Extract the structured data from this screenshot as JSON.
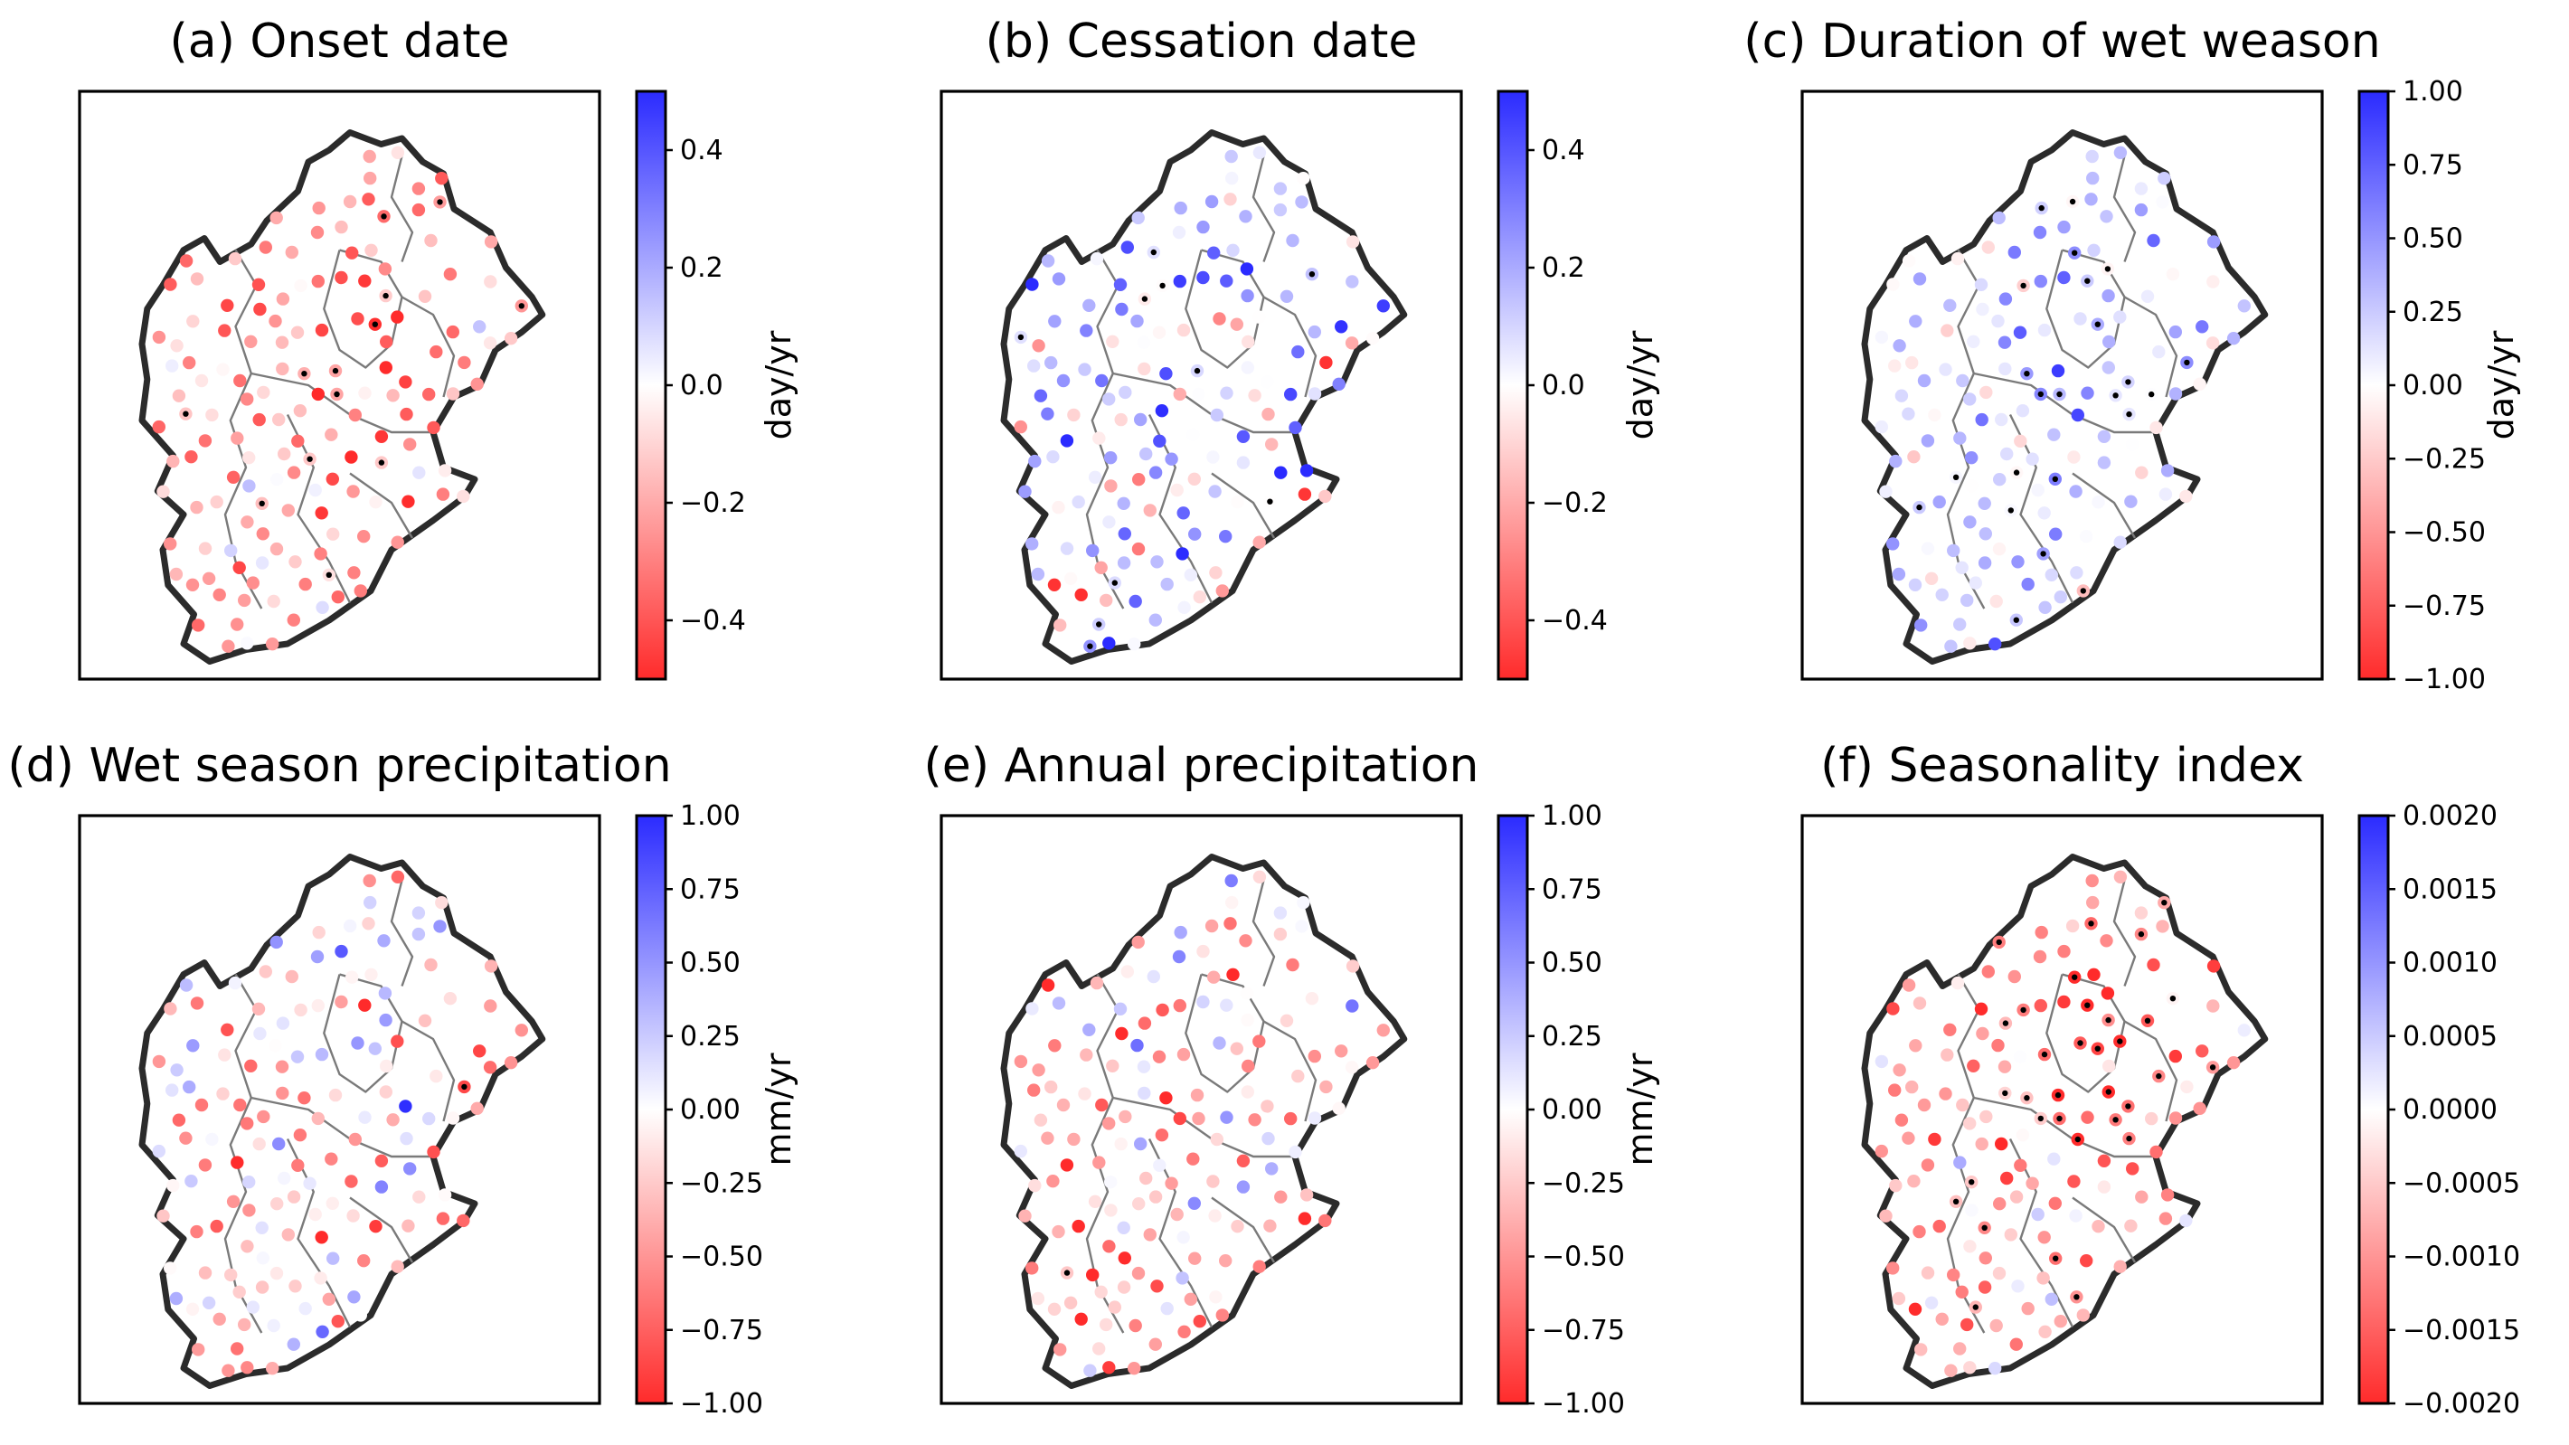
{
  "figure": {
    "colormap": {
      "negative": "#ff2b2b",
      "zero": "#ffffff",
      "positive": "#2b2bff"
    },
    "significance_marker_color": "#000000",
    "outline_color": "#2b2b2b",
    "inner_border_color": "#7a7a7a"
  },
  "chart_data": [
    {
      "type": "scatter",
      "title": "(a) Onset date",
      "colorbar": {
        "label": "day/yr",
        "vmin": -0.5,
        "vmax": 0.5,
        "ticks": [
          0.4,
          0.2,
          0.0,
          -0.2,
          -0.4
        ],
        "tick_labels": [
          "0.4",
          "0.2",
          "0.0",
          "−0.2",
          "−0.4"
        ]
      },
      "seed": 11,
      "bias": -0.28,
      "spread": 0.14,
      "sig_fraction": 0.1,
      "sig_region": "center-north"
    },
    {
      "type": "scatter",
      "title": "(b) Cessation date",
      "colorbar": {
        "label": "day/yr",
        "vmin": -0.5,
        "vmax": 0.5,
        "ticks": [
          0.4,
          0.2,
          0.0,
          -0.2,
          -0.4
        ],
        "tick_labels": [
          "0.4",
          "0.2",
          "0.0",
          "−0.2",
          "−0.4"
        ]
      },
      "seed": 23,
      "bias": 0.12,
      "spread": 0.22,
      "sig_fraction": 0.08,
      "sig_region": "north"
    },
    {
      "type": "scatter",
      "title": "(c) Duration of wet weason",
      "colorbar": {
        "label": "day/yr",
        "vmin": -1.0,
        "vmax": 1.0,
        "ticks": [
          1.0,
          0.75,
          0.5,
          0.25,
          0.0,
          -0.25,
          -0.5,
          -0.75,
          -1.0
        ],
        "tick_labels": [
          "1.00",
          "0.75",
          "0.50",
          "0.25",
          "0.00",
          "−0.25",
          "−0.50",
          "−0.75",
          "−1.00"
        ]
      },
      "seed": 37,
      "bias": 0.35,
      "spread": 0.25,
      "sig_fraction": 0.14,
      "sig_region": "center-north"
    },
    {
      "type": "scatter",
      "title": "(d) Wet season precipitation",
      "colorbar": {
        "label": "mm/yr",
        "vmin": -1.0,
        "vmax": 1.0,
        "ticks": [
          1.0,
          0.75,
          0.5,
          0.25,
          0.0,
          -0.25,
          -0.5,
          -0.75,
          -1.0
        ],
        "tick_labels": [
          "1.00",
          "0.75",
          "0.50",
          "0.25",
          "0.00",
          "−0.25",
          "−0.50",
          "−0.75",
          "−1.00"
        ]
      },
      "seed": 41,
      "bias": -0.3,
      "spread": 0.45,
      "sig_fraction": 0.01,
      "sig_region": "east"
    },
    {
      "type": "scatter",
      "title": "(e) Annual precipitation",
      "colorbar": {
        "label": "mm/yr",
        "vmin": -1.0,
        "vmax": 1.0,
        "ticks": [
          1.0,
          0.75,
          0.5,
          0.25,
          0.0,
          -0.25,
          -0.5,
          -0.75,
          -1.0
        ],
        "tick_labels": [
          "1.00",
          "0.75",
          "0.50",
          "0.25",
          "0.00",
          "−0.25",
          "−0.50",
          "−0.75",
          "−1.00"
        ]
      },
      "seed": 53,
      "bias": -0.38,
      "spread": 0.45,
      "sig_fraction": 0.02,
      "sig_region": "south"
    },
    {
      "type": "scatter",
      "title": "(f) Seasonality index",
      "colorbar": {
        "label": "",
        "vmin": -0.002,
        "vmax": 0.002,
        "ticks": [
          0.002,
          0.0015,
          0.001,
          0.0005,
          0.0,
          -0.0005,
          -0.001,
          -0.0015,
          -0.002
        ],
        "tick_labels": [
          "0.0020",
          "0.0015",
          "0.0010",
          "0.0005",
          "0.0000",
          "−0.0005",
          "−0.0010",
          "−0.0015",
          "−0.0020"
        ]
      },
      "seed": 67,
      "bias": -0.0013,
      "spread": 0.0006,
      "sig_fraction": 0.22,
      "sig_region": "center-north"
    }
  ]
}
